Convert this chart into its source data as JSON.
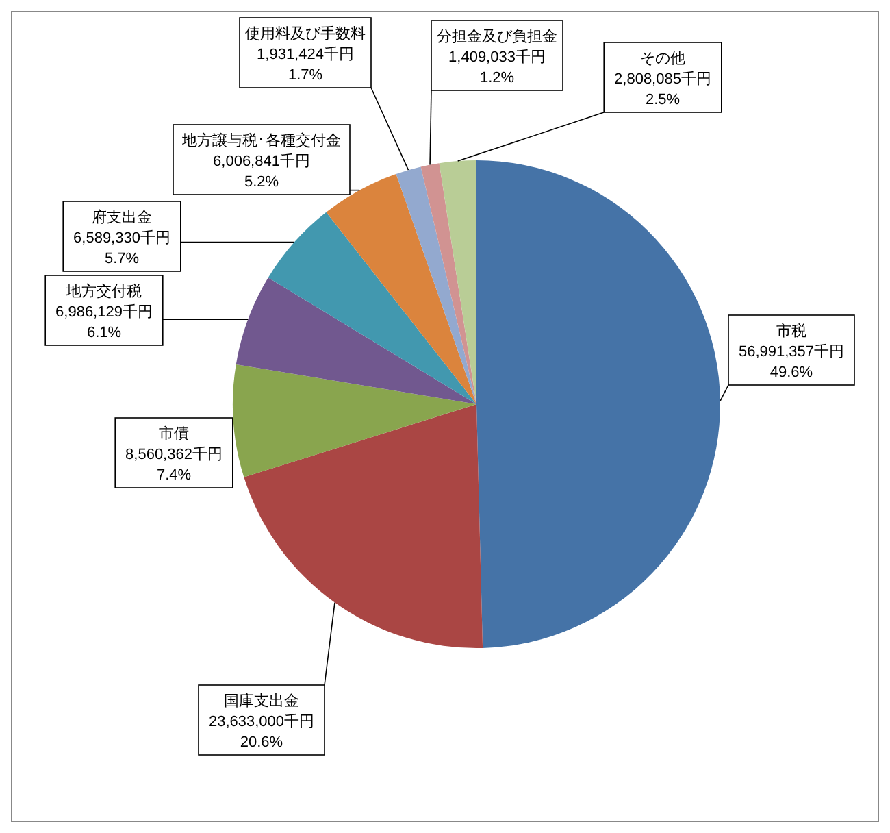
{
  "chart_data": {
    "type": "pie",
    "categories": [
      "市税",
      "国庫支出金",
      "市債",
      "地方交付税",
      "府支出金",
      "地方譲与税･各種交付金",
      "使用料及び手数料",
      "分担金及び負担金",
      "その他"
    ],
    "values": [
      56991357,
      23633000,
      8560362,
      6986129,
      6589330,
      6006841,
      1931424,
      1409033,
      2808085
    ],
    "colors": [
      "#4573a7",
      "#aa4644",
      "#89a54e",
      "#71588f",
      "#4298af",
      "#db843d",
      "#93a9cf",
      "#d19392",
      "#b9cd96"
    ],
    "value_labels": [
      "56,991,357千円\n49.6%",
      "23,633,000千円\n20.6%",
      "8,560,362千円\n7.4%",
      "6,986,129千円\n6.1%",
      "6,589,330千円\n5.7%",
      "6,006,841千円\n5.2%",
      "1,931,424千円\n1.7%",
      "1,409,033千円\n1.2%",
      "2,808,085千円\n2.5%"
    ],
    "legend": false
  }
}
